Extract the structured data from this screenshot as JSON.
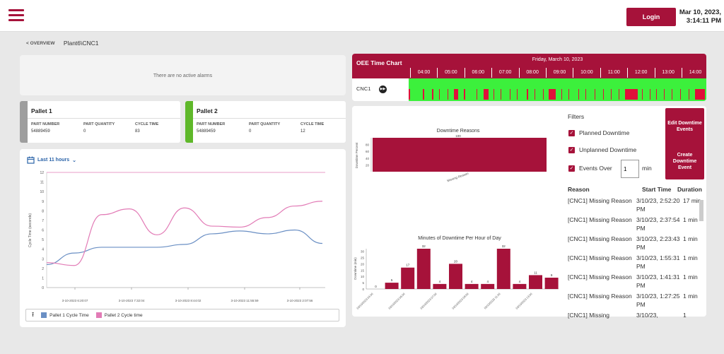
{
  "header": {
    "login_label": "Login",
    "date": "Mar 10, 2023,",
    "time": "3:14:11 PM"
  },
  "breadcrumb": {
    "back": "< OVERVIEW",
    "path": "Plant6\\CNC1"
  },
  "alarms": {
    "message": "There are no active alarms"
  },
  "pallets": [
    {
      "title": "Pallet 1",
      "color": "#9e9e9e",
      "labels": [
        "PART NUMBER",
        "PART QUANTITY",
        "CYCLE TIME"
      ],
      "values": [
        "54889459",
        "0",
        "83"
      ]
    },
    {
      "title": "Pallet 2",
      "color": "#5fb82a",
      "labels": [
        "PART NUMBER",
        "PART QUANTITY",
        "CYCLE TIME"
      ],
      "values": [
        "54889459",
        "0",
        "12"
      ]
    }
  ],
  "cycle": {
    "range_label": "Last 11 hours",
    "legend": [
      "Pallet 1 Cycle Time",
      "Pallet 2 Cycle time"
    ],
    "y_label": "Cycle Time (seconds)",
    "y_ticks": [
      "0",
      "1",
      "2",
      "3",
      "4",
      "5",
      "6",
      "7",
      "8",
      "9",
      "10",
      "11",
      "12"
    ],
    "x_ticks": [
      "3-10-2023 6:20:07",
      "3-10-2023 7:32:04",
      "3-10-2023 8:44:02",
      "3-10-2023 11:55:59",
      "3-10-2023 2:07:56"
    ],
    "colors": {
      "p1": "#6a8fc4",
      "p2": "#e27bb6"
    }
  },
  "oee": {
    "title": "OEE Time Chart",
    "date": "Friday, March 10, 2023",
    "hours": [
      "04:00",
      "05:00",
      "06:00",
      "07:00",
      "08:00",
      "09:00",
      "10:00",
      "11:00",
      "12:00",
      "13:00",
      "14:00"
    ],
    "machine": "CNC1",
    "colors": {
      "running": "#3cf03c",
      "down": "#e0103a"
    }
  },
  "downtime": {
    "reasons_title": "Downtime Reasons",
    "reasons_y_label": "Downtime Percent",
    "reasons_y_ticks": [
      "20",
      "40",
      "60",
      "80"
    ],
    "reason_label": "Missing Reason",
    "reason_value_label": "100",
    "hourly_title": "Minutes of Downtime Per Hour of Day",
    "hourly_y_label": "Downtime (min)",
    "hourly_y_ticks": [
      "0",
      "5",
      "10",
      "15",
      "20",
      "25",
      "30"
    ],
    "hourly_values": [
      "0",
      "5",
      "17",
      "32",
      "4",
      "20",
      "4",
      "4",
      "32",
      "4",
      "11",
      "9"
    ],
    "hourly_x_labels": [
      "03/10/2023 04:00",
      "03/10/2023 06:00",
      "03/10/2023 07:00",
      "03/10/2023 09:00",
      "03/10/2023 11:00",
      "03/10/2023 13:00"
    ]
  },
  "chart_data": [
    {
      "type": "line",
      "title": "",
      "xlabel": "",
      "ylabel": "Cycle Time (seconds)",
      "ylim": [
        0,
        12
      ],
      "series": [
        {
          "name": "Pallet 1 Cycle Time",
          "values": [
            2.4,
            3.6,
            4.2,
            4.2,
            4.2,
            4.5,
            5.6,
            5.9,
            5.6,
            6.0,
            4.6
          ]
        },
        {
          "name": "Pallet 2 Cycle time",
          "values": [
            2.6,
            2.3,
            7.6,
            8.2,
            5.5,
            8.3,
            6.4,
            6.3,
            7.3,
            8.5,
            9.0
          ]
        }
      ]
    },
    {
      "type": "bar",
      "title": "Downtime Reasons",
      "ylabel": "Downtime Percent",
      "categories": [
        "Missing Reason"
      ],
      "values": [
        100
      ],
      "ylim": [
        0,
        100
      ]
    },
    {
      "type": "bar",
      "title": "Minutes of Downtime Per Hour of Day",
      "ylabel": "Downtime (min)",
      "categories": [
        "04:00",
        "05:00",
        "06:00",
        "07:00",
        "08:00",
        "09:00",
        "10:00",
        "11:00",
        "12:00",
        "13:00",
        "14:00",
        "15:00"
      ],
      "values": [
        0,
        5,
        17,
        32,
        4,
        20,
        4,
        4,
        32,
        4,
        11,
        9
      ],
      "ylim": [
        0,
        32
      ]
    }
  ],
  "filters": {
    "title": "Filters",
    "planned": "Planned Downtime",
    "unplanned": "Unplanned Downtime",
    "events_over": "Events Over",
    "events_value": "1",
    "unit": "min",
    "edit_button": "Edit Downtime Events",
    "create_button": "Create Downtime Event"
  },
  "table": {
    "headers": [
      "Reason",
      "Start Time",
      "Duration"
    ],
    "rows": [
      {
        "reason": "[CNC1] Missing Reason",
        "start": "3/10/23, 2:52:20 PM",
        "duration": "17 min"
      },
      {
        "reason": "[CNC1] Missing Reason",
        "start": "3/10/23, 2:37:54 PM",
        "duration": "1 min"
      },
      {
        "reason": "[CNC1] Missing Reason",
        "start": "3/10/23, 2:23:43 PM",
        "duration": "1 min"
      },
      {
        "reason": "[CNC1] Missing Reason",
        "start": "3/10/23, 1:55:31 PM",
        "duration": "1 min"
      },
      {
        "reason": "[CNC1] Missing Reason",
        "start": "3/10/23, 1:41:31 PM",
        "duration": "1 min"
      },
      {
        "reason": "[CNC1] Missing Reason",
        "start": "3/10/23, 1:27:25 PM",
        "duration": "1 min"
      },
      {
        "reason": "[CNC1] Missing",
        "start": "3/10/23,",
        "duration": "1"
      }
    ]
  }
}
